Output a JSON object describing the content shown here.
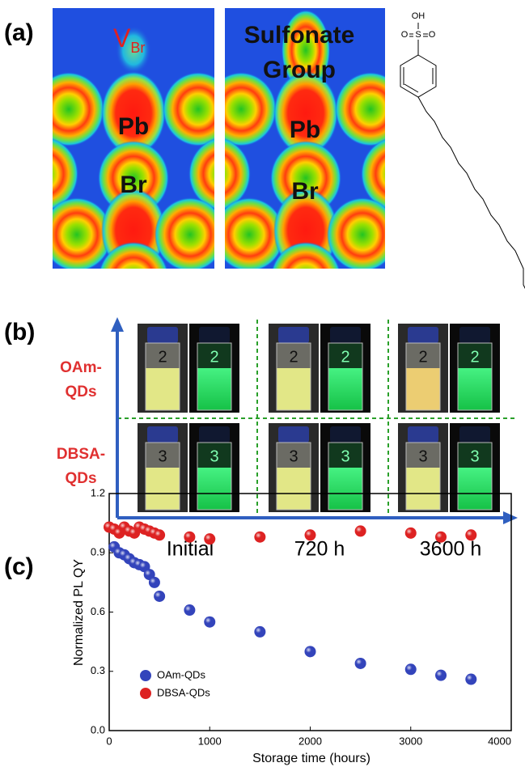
{
  "panel_a": {
    "label": "(a)",
    "vacancy": {
      "main": "V",
      "sub": "Br"
    },
    "group_label": [
      "Sulfonate",
      "Group"
    ],
    "atoms_left": [
      "Pb",
      "Br"
    ],
    "atoms_right": [
      "Pb",
      "Br"
    ],
    "molecule_atoms": [
      "OH",
      "S",
      "O",
      "O"
    ]
  },
  "panel_b": {
    "label": "(b)",
    "rows": [
      {
        "label": [
          "OAm-",
          "QDs"
        ],
        "vial": "2"
      },
      {
        "label": [
          "DBSA-",
          "QDs"
        ],
        "vial": "3"
      }
    ],
    "columns": [
      "Initial",
      "720 h",
      "3600 h"
    ]
  },
  "chart_data": {
    "panel_label": "(c)",
    "type": "scatter",
    "x_label": "Storage time (hours)",
    "y_label": "Normalized PL QY",
    "xlim": [
      0,
      4000
    ],
    "ylim": [
      0,
      1.2
    ],
    "xticks": [
      0,
      1000,
      2000,
      3000,
      4000
    ],
    "yticks": [
      {
        "value": 0,
        "label": "0.0"
      },
      0.3,
      0.6,
      0.9,
      1.2
    ],
    "legend": "center left",
    "series": [
      {
        "name": "OAm-QDs",
        "color": "#3344bb",
        "x": [
          50,
          100,
          150,
          200,
          250,
          300,
          350,
          400,
          450,
          500,
          800,
          1000,
          1500,
          2000,
          2500,
          3000,
          3300,
          3600
        ],
        "values": [
          0.93,
          0.9,
          0.89,
          0.87,
          0.85,
          0.84,
          0.83,
          0.79,
          0.75,
          0.68,
          0.61,
          0.55,
          0.5,
          0.4,
          0.34,
          0.31,
          0.28,
          0.26
        ]
      },
      {
        "name": "DBSA-QDs",
        "color": "#dd2222",
        "x": [
          0,
          50,
          100,
          150,
          200,
          250,
          300,
          350,
          400,
          450,
          500,
          800,
          1000,
          1500,
          2000,
          2500,
          3000,
          3300,
          3600
        ],
        "values": [
          1.03,
          1.02,
          1.0,
          1.03,
          1.01,
          1.0,
          1.03,
          1.02,
          1.01,
          1.0,
          0.99,
          0.98,
          0.97,
          0.98,
          0.99,
          1.01,
          1.0,
          0.98,
          0.99
        ]
      }
    ]
  }
}
